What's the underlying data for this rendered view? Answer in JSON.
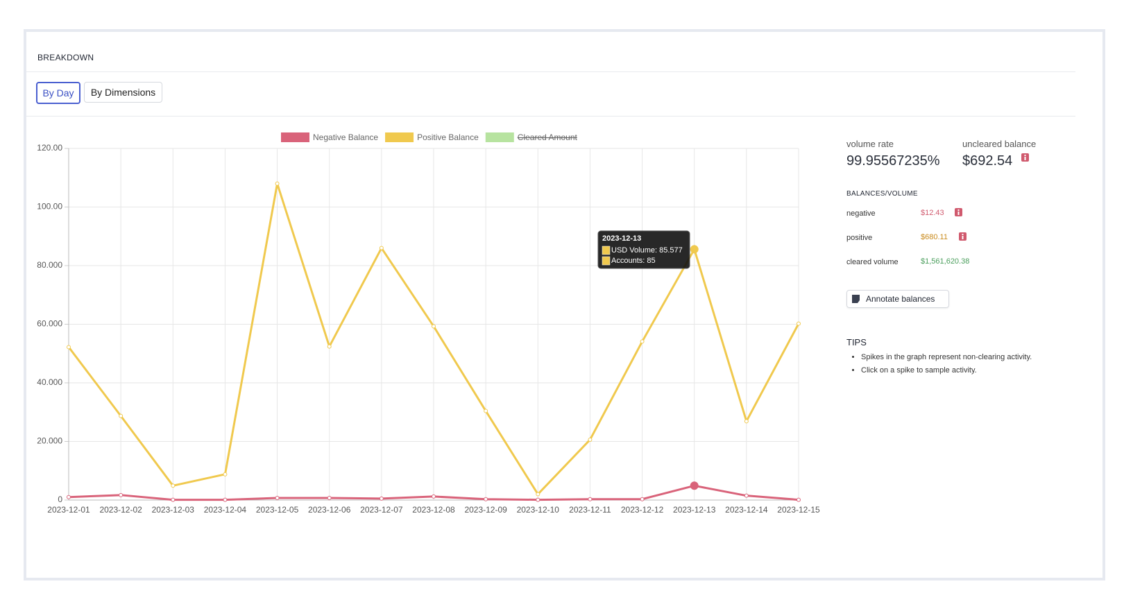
{
  "header": {
    "title": "BREAKDOWN"
  },
  "tabs": [
    "By Day",
    "By Dimensions"
  ],
  "chart_data": {
    "type": "line",
    "categories": [
      "2023-12-01",
      "2023-12-02",
      "2023-12-03",
      "2023-12-04",
      "2023-12-05",
      "2023-12-06",
      "2023-12-07",
      "2023-12-08",
      "2023-12-09",
      "2023-12-10",
      "2023-12-11",
      "2023-12-12",
      "2023-12-13",
      "2023-12-14",
      "2023-12-15"
    ],
    "series": [
      {
        "name": "Negative Balance",
        "color": "#d9637a",
        "values": [
          1.0,
          1.7,
          0.1,
          0.1,
          0.7,
          0.7,
          0.5,
          1.2,
          0.3,
          0.1,
          0.3,
          0.3,
          4.9,
          1.5,
          0.1
        ]
      },
      {
        "name": "Positive Balance",
        "color": "#f0c94e",
        "values": [
          52.2,
          28.7,
          4.9,
          8.8,
          108,
          52.4,
          86,
          59.3,
          30.4,
          2.0,
          20.6,
          54.1,
          85.577,
          26.9,
          60.2
        ]
      },
      {
        "name": "Cleared Amount",
        "color": "#b7e3a0",
        "hidden": true
      }
    ],
    "ylim": [
      0,
      120
    ],
    "yticks": [
      0,
      {
        "value": 20,
        "label": "20.000"
      },
      {
        "value": 40,
        "label": "40.000"
      },
      {
        "value": 60,
        "label": "60.000"
      },
      {
        "value": 80,
        "label": "80.000"
      },
      {
        "value": 100,
        "label": "100.00"
      },
      {
        "value": 120,
        "label": "120.00"
      }
    ],
    "grid": true,
    "legend": "top",
    "tooltip": {
      "index": 12,
      "title": "2023-12-13",
      "items": [
        "USD Volume: 85.577",
        "Accounts: 85"
      ]
    }
  },
  "stats": {
    "volume_rate": {
      "label": "volume rate",
      "value": "99.95567235%"
    },
    "uncleared_balance": {
      "label": "uncleared balance",
      "value": "$692.54"
    },
    "section_title": "BALANCES/VOLUME",
    "rows": [
      {
        "label": "negative",
        "value": "$12.43"
      },
      {
        "label": "positive",
        "value": "$680.11"
      },
      {
        "label": "cleared volume",
        "value": "$1,561,620.38"
      }
    ],
    "button": "Annotate balances"
  },
  "tips": {
    "title": "TIPS",
    "items": [
      "Spikes in the graph represent non-clearing activity.",
      "Click on a spike to sample activity."
    ]
  }
}
